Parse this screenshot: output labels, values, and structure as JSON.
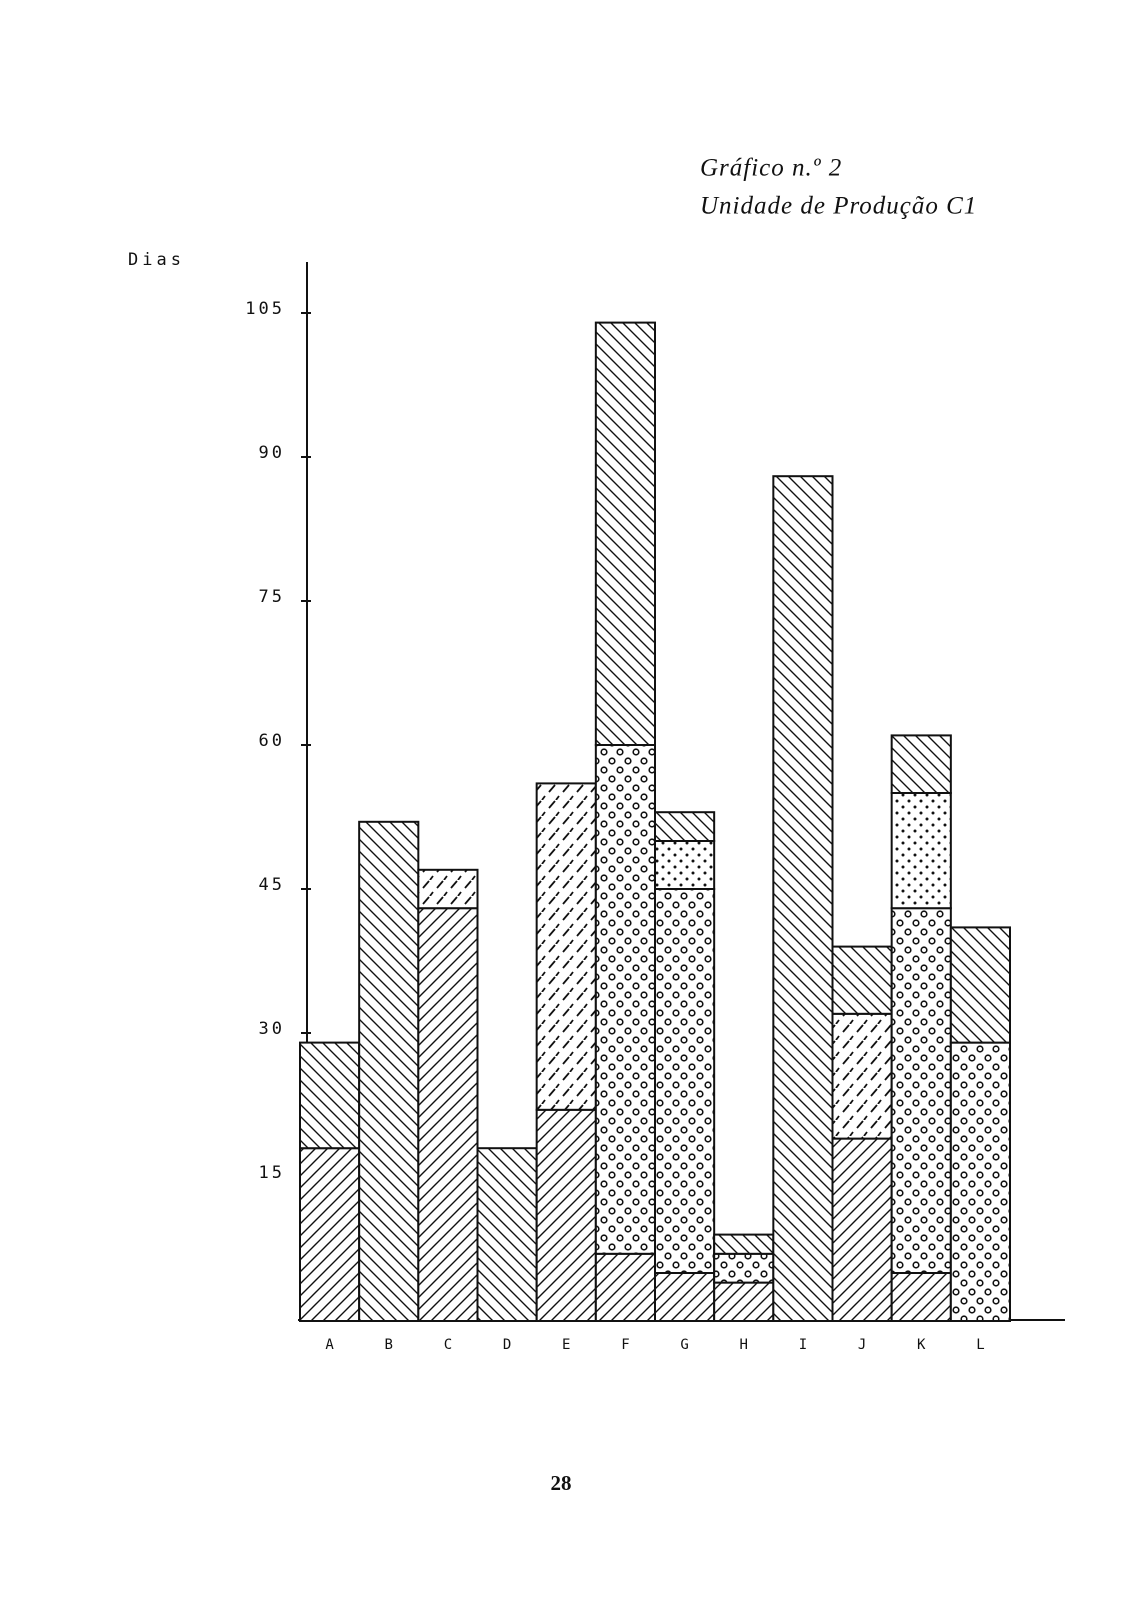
{
  "chart_data": {
    "type": "stacked-bar",
    "title": "Gráfico n.º 2",
    "subtitle": "Unidade de Produção C1",
    "y_label": "Dias",
    "page_number": "28",
    "categories": [
      "A",
      "B",
      "C",
      "D",
      "E",
      "F",
      "G",
      "H",
      "I",
      "J",
      "K",
      "L"
    ],
    "series": [
      {
        "pattern": "hatch-forward",
        "values": [
          18,
          null,
          43,
          null,
          22,
          7,
          5,
          4,
          null,
          19,
          5,
          null
        ]
      },
      {
        "pattern": "dashes",
        "values": [
          null,
          null,
          4,
          null,
          34,
          null,
          null,
          null,
          null,
          13,
          null,
          null
        ]
      },
      {
        "pattern": "circles",
        "values": [
          null,
          null,
          null,
          null,
          null,
          53,
          40,
          3,
          null,
          null,
          38,
          29
        ]
      },
      {
        "pattern": "dots",
        "values": [
          null,
          null,
          null,
          null,
          null,
          null,
          5,
          null,
          null,
          null,
          12,
          null
        ]
      },
      {
        "pattern": "hatch-back",
        "values": [
          11,
          52,
          null,
          18,
          null,
          44,
          3,
          2,
          88,
          7,
          6,
          12
        ]
      }
    ],
    "ylim": [
      0,
      110
    ],
    "yticks": [
      15,
      30,
      45,
      60,
      75,
      90,
      105
    ]
  }
}
